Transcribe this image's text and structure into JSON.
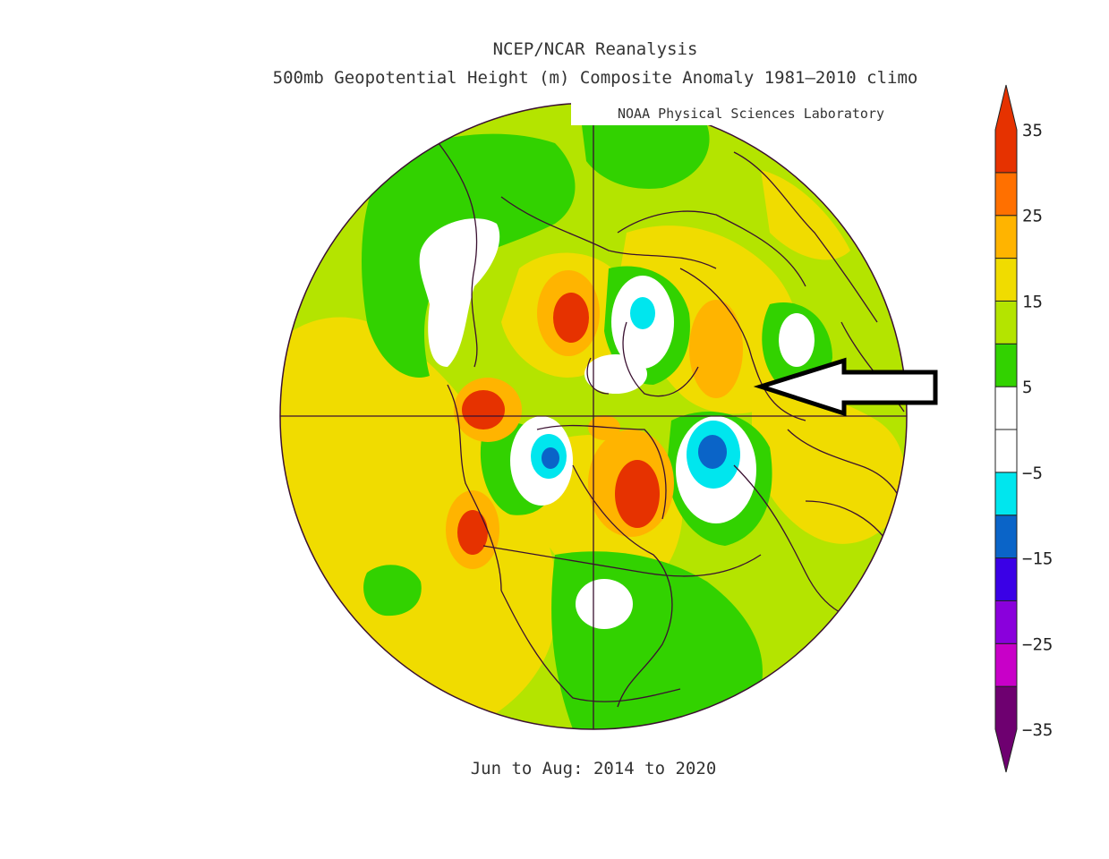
{
  "header": {
    "title": "NCEP/NCAR Reanalysis",
    "subtitle": "500mb Geopotential Height (m) Composite Anomaly 1981–2010 climo",
    "credit": "NOAA Physical Sciences Laboratory"
  },
  "footer": {
    "period": "Jun to Aug: 2014 to 2020"
  },
  "legend": {
    "tick_labels": [
      "35",
      "25",
      "15",
      "5",
      "−5",
      "−15",
      "−25",
      "−35"
    ],
    "colors": [
      "#6e0070",
      "#c800c8",
      "#8a00dc",
      "#3a00e6",
      "#0a64c8",
      "#00e6ee",
      "#ffffff",
      "#ffffff",
      "#32d200",
      "#b4e400",
      "#f0dc00",
      "#ffb400",
      "#ff7000",
      "#e63200"
    ]
  },
  "map": {
    "projection": "polar-stereographic",
    "annotation": "arrow-pointing-west-europe",
    "colors": {
      "background_anomaly": "#b4e400",
      "positive_15": "#f0dc00",
      "positive_25": "#ffb400",
      "positive_35": "#e63200",
      "positive_5": "#32d200",
      "neutral": "#ffffff",
      "negative_5": "#00e6ee",
      "negative_15": "#0a64c8"
    }
  }
}
